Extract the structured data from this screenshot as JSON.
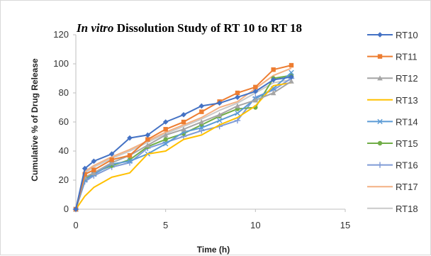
{
  "chart_data": {
    "type": "line",
    "title_italic": "In vitro",
    "title_rest": " Dissolution Study of RT 10 to RT 18",
    "xlabel": "Time (h)",
    "ylabel": "Cumulative % of Drug Release",
    "xlim": [
      0,
      15
    ],
    "ylim": [
      0,
      120
    ],
    "xticks": [
      0,
      5,
      10,
      15
    ],
    "yticks": [
      0,
      20,
      40,
      60,
      80,
      100,
      120
    ],
    "grid": false,
    "legend_position": "right",
    "x": [
      0,
      0.5,
      1,
      2,
      3,
      4,
      5,
      6,
      7,
      8,
      9,
      10,
      11,
      12
    ],
    "series": [
      {
        "name": "RT10",
        "color": "#4472c4",
        "marker": "diamond",
        "values": [
          0,
          28,
          33,
          38,
          49,
          51,
          60,
          65,
          71,
          73,
          77,
          81,
          89,
          91
        ]
      },
      {
        "name": "RT11",
        "color": "#ed7d31",
        "marker": "square",
        "values": [
          0,
          24,
          27,
          34,
          37,
          48,
          55,
          60,
          67,
          74,
          80,
          84,
          96,
          99
        ]
      },
      {
        "name": "RT12",
        "color": "#a5a5a5",
        "marker": "triangle",
        "values": [
          0,
          22,
          25,
          32,
          37,
          44,
          51,
          55,
          60,
          65,
          71,
          75,
          80,
          88
        ]
      },
      {
        "name": "RT13",
        "color": "#ffc000",
        "marker": "none",
        "values": [
          0,
          9,
          15,
          22,
          25,
          38,
          40,
          48,
          51,
          58,
          63,
          71,
          85,
          87
        ]
      },
      {
        "name": "RT14",
        "color": "#5b9bd5",
        "marker": "cross",
        "values": [
          0,
          20,
          24,
          31,
          33,
          38,
          45,
          53,
          56,
          61,
          66,
          76,
          83,
          94
        ]
      },
      {
        "name": "RT15",
        "color": "#70ad47",
        "marker": "circle",
        "values": [
          0,
          21,
          25,
          30,
          34,
          43,
          48,
          52,
          58,
          64,
          69,
          70,
          90,
          92
        ]
      },
      {
        "name": "RT16",
        "color": "#7f9bd6",
        "marker": "plus",
        "values": [
          0,
          19,
          23,
          29,
          32,
          42,
          46,
          50,
          54,
          57,
          61,
          77,
          82,
          90
        ]
      },
      {
        "name": "RT17",
        "color": "#f4b183",
        "marker": "none",
        "values": [
          0,
          26,
          30,
          36,
          41,
          47,
          53,
          58,
          63,
          70,
          74,
          83,
          92,
          97
        ]
      },
      {
        "name": "RT18",
        "color": "#c9c9c9",
        "marker": "none",
        "values": [
          0,
          25,
          29,
          35,
          40,
          46,
          52,
          57,
          62,
          68,
          73,
          80,
          87,
          89
        ]
      }
    ]
  }
}
